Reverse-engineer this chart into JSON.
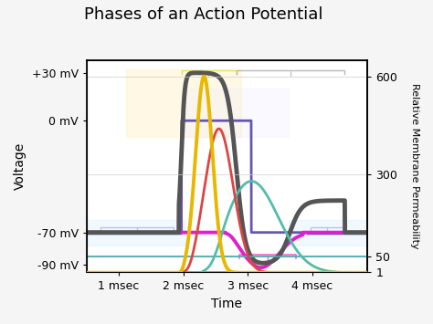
{
  "title": "Phases of an Action Potential",
  "xlabel": "Time",
  "ylabel": "Voltage",
  "ylabel_right": "Relative Membrane Permeability",
  "background_color": "#f5f5f5",
  "plot_bg_color": "#ffffff",
  "xlim": [
    0.5,
    4.85
  ],
  "ylim_left": [
    -95,
    38
  ],
  "ylim_right": [
    1,
    650
  ],
  "xtick_positions": [
    1,
    2,
    3,
    4
  ],
  "xtick_labels": [
    "1 msec",
    "2 msec",
    "3 msec",
    "4 msec"
  ],
  "ytick_positions_left": [
    -90,
    -70,
    0,
    30
  ],
  "ytick_labels_left": [
    "-90 mV",
    "-70 mV",
    "0 mV",
    "+30 mV"
  ],
  "ytick_positions_right": [
    1,
    50,
    300,
    600
  ],
  "ytick_labels_right": [
    "1",
    "50",
    "300",
    "600"
  ],
  "colors": {
    "ap": "#555555",
    "na_cond": "#e8b800",
    "k_cond": "#55bbaa",
    "na_perm_red": "#dd4444",
    "k_perm_magenta": "#dd22cc",
    "blue_line": "#2255bb",
    "purple_step": "#5544aa",
    "teal_baseline": "#44aaaa",
    "pink_flat": "#ffaaaa",
    "light_blue_box": "#aabbdd",
    "yellow_box": "#dddd44",
    "gray_box": "#aaaaaa",
    "magenta_bracket": "#ee44cc"
  }
}
